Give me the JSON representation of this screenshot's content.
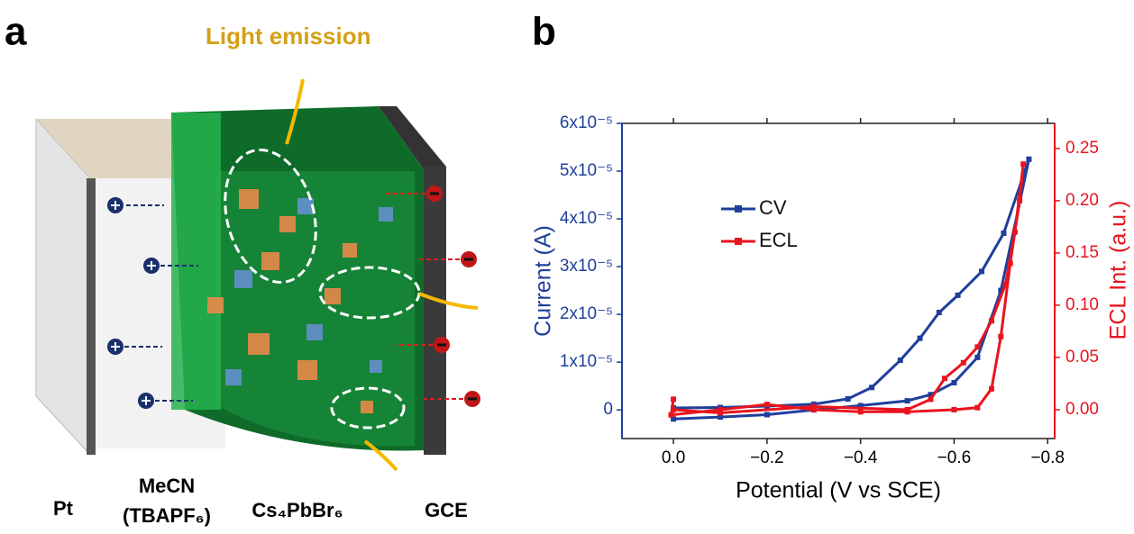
{
  "panel_a": {
    "label": "a",
    "emission": "Light emission",
    "electrode_left": "Pt",
    "electrolyte": "MeCN",
    "electrolyte_salt": "(TBAPF₆)",
    "material": "Cs₄PbBr₆",
    "electrode_right": "GCE"
  },
  "chart_data": {
    "type": "line",
    "label": "b",
    "x_label": "Potential (V vs SCE)",
    "y_label": "Current (A)",
    "y2_label": "ECL Int. (a.u.)",
    "xlim": [
      0.11,
      -0.815
    ],
    "xticks": [
      {
        "value": 0,
        "label": "0.0"
      },
      {
        "value": -0.2,
        "label": "−0.2"
      },
      {
        "value": -0.4,
        "label": "−0.4"
      },
      {
        "value": -0.6,
        "label": "−0.6"
      },
      {
        "value": -0.8,
        "label": "−0.8"
      }
    ],
    "ylim": [
      -6e-06,
      6e-05
    ],
    "yticks": [
      0,
      {
        "value": 1e-05,
        "label": "1x10⁻⁵"
      },
      {
        "value": 2e-05,
        "label": "2x10⁻⁵"
      },
      {
        "value": 3e-05,
        "label": "3x10⁻⁵"
      },
      {
        "value": 4e-05,
        "label": "4x10⁻⁵"
      },
      {
        "value": 5e-05,
        "label": "5x10⁻⁵"
      },
      {
        "value": 6e-05,
        "label": "6x10⁻⁵"
      }
    ],
    "y2lim": [
      -0.0276,
      0.274
    ],
    "y2ticks": [
      {
        "value": 0,
        "label": "0.00"
      },
      {
        "value": 0.05,
        "label": "0.05"
      },
      {
        "value": 0.1,
        "label": "0.10"
      },
      {
        "value": 0.15,
        "label": "0.15"
      },
      {
        "value": 0.2,
        "label": "0.20"
      },
      {
        "value": 0.25,
        "label": "0.25"
      }
    ],
    "series": [
      {
        "name": "CV",
        "color": "#1f3f9c",
        "x": [
          0,
          -0.1,
          -0.2,
          -0.3,
          -0.4,
          -0.5,
          -0.55,
          -0.6,
          -0.65,
          -0.7,
          -0.76,
          -0.706,
          -0.659,
          -0.608,
          -0.568,
          -0.527,
          -0.485,
          -0.424,
          -0.373,
          -0.3,
          -0.2,
          -0.1,
          0
        ],
        "values": [
          -1.9e-06,
          -1.5e-06,
          -1e-06,
          0,
          9e-07,
          1.9e-06,
          3.2e-06,
          5.7e-06,
          1.1e-05,
          2.5e-05,
          5.25e-05,
          3.7e-05,
          2.9e-05,
          2.4e-05,
          2.04e-05,
          1.5e-05,
          1.04e-05,
          4.7e-06,
          2.3e-06,
          1.2e-06,
          8e-07,
          5e-07,
          4e-07
        ]
      },
      {
        "name": "ECL",
        "color": "#e8141e",
        "axis": "y2",
        "x": [
          0,
          0.005,
          -0.1,
          -0.2,
          -0.3,
          -0.4,
          -0.5,
          -0.6,
          -0.65,
          -0.68,
          -0.7,
          -0.72,
          -0.74,
          -0.748,
          -0.73,
          -0.71,
          -0.68,
          -0.65,
          -0.62,
          -0.58,
          -0.55,
          -0.5,
          -0.3,
          -0.1,
          0
        ],
        "values": [
          0.01,
          -0.005,
          0.0,
          0.005,
          0.0,
          -0.002,
          -0.002,
          0.0,
          0.002,
          0.02,
          0.07,
          0.14,
          0.2,
          0.235,
          0.17,
          0.12,
          0.085,
          0.06,
          0.045,
          0.03,
          0.01,
          0.0,
          0.003,
          -0.003,
          0.0
        ]
      }
    ]
  }
}
